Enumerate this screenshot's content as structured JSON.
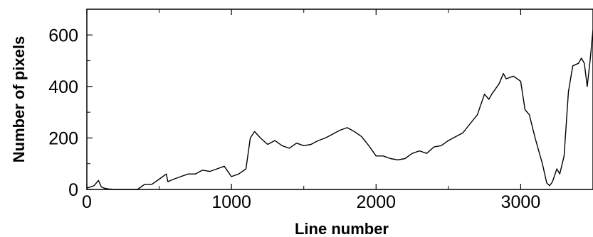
{
  "chart_data": {
    "type": "line",
    "title": "",
    "xlabel": "Line number",
    "ylabel": "Number of pixels",
    "xlim": [
      0,
      3500
    ],
    "ylim": [
      0,
      700
    ],
    "xticks": [
      0,
      1000,
      2000,
      3000
    ],
    "xtick_labels": [
      "0",
      "1000",
      "2000",
      "3000"
    ],
    "yticks": [
      0,
      200,
      400,
      600
    ],
    "ytick_labels": [
      "0",
      "200",
      "400",
      "600"
    ],
    "grid": false,
    "series": [
      {
        "x": [
          0,
          50,
          80,
          100,
          120,
          150,
          200,
          300,
          350,
          400,
          450,
          500,
          550,
          560,
          600,
          650,
          700,
          750,
          800,
          850,
          900,
          950,
          1000,
          1050,
          1100,
          1130,
          1160,
          1200,
          1250,
          1300,
          1350,
          1400,
          1450,
          1500,
          1550,
          1600,
          1650,
          1700,
          1750,
          1800,
          1850,
          1900,
          1950,
          2000,
          2050,
          2100,
          2150,
          2200,
          2250,
          2300,
          2350,
          2400,
          2450,
          2500,
          2550,
          2600,
          2650,
          2700,
          2750,
          2780,
          2800,
          2850,
          2880,
          2900,
          2950,
          3000,
          3030,
          3060,
          3100,
          3150,
          3180,
          3200,
          3220,
          3250,
          3270,
          3300,
          3330,
          3360,
          3400,
          3420,
          3440,
          3460,
          3480,
          3500
        ],
        "y": [
          5,
          15,
          35,
          10,
          5,
          2,
          0,
          0,
          0,
          20,
          20,
          40,
          60,
          30,
          40,
          50,
          60,
          60,
          75,
          70,
          80,
          90,
          50,
          60,
          80,
          200,
          225,
          200,
          175,
          190,
          170,
          160,
          180,
          170,
          175,
          190,
          200,
          215,
          230,
          240,
          225,
          205,
          170,
          130,
          130,
          120,
          115,
          120,
          140,
          150,
          140,
          165,
          170,
          190,
          205,
          220,
          255,
          290,
          370,
          350,
          370,
          410,
          450,
          430,
          440,
          420,
          310,
          290,
          200,
          100,
          25,
          15,
          30,
          80,
          60,
          130,
          380,
          480,
          490,
          510,
          490,
          400,
          500,
          620
        ]
      }
    ]
  }
}
